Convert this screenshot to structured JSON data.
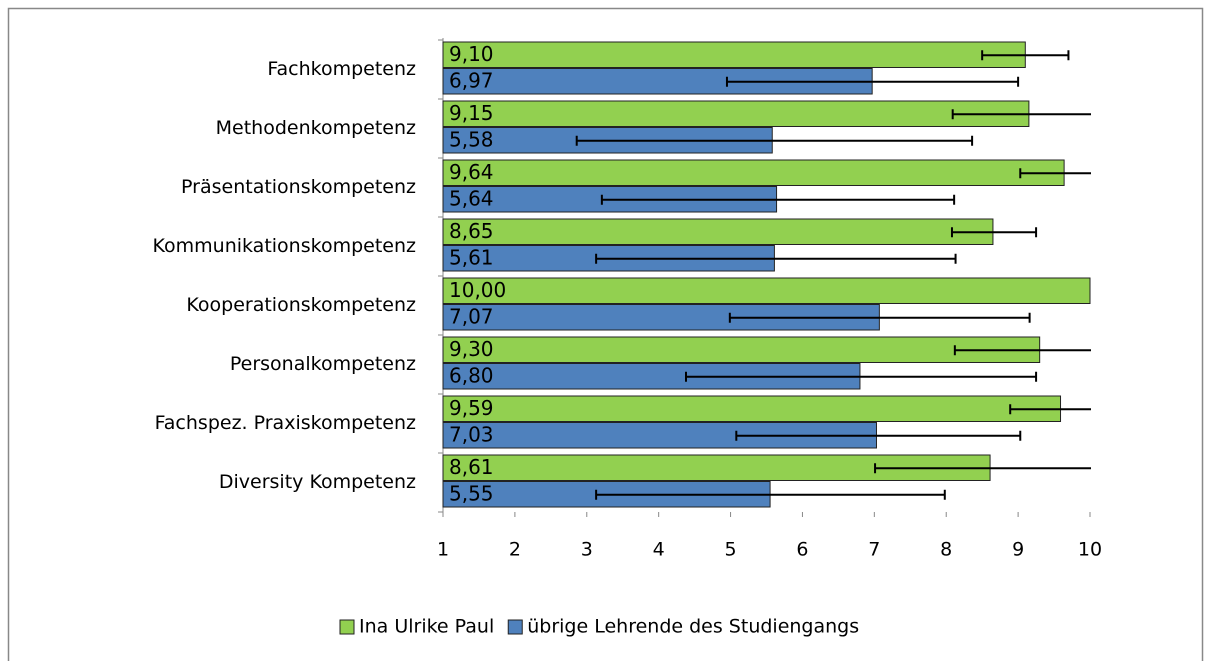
{
  "chart_data": {
    "type": "bar",
    "orientation": "horizontal",
    "categories": [
      "Fachkompetenz",
      "Methodenkompetenz",
      "Präsentationskompetenz",
      "Kommunikationskompetenz",
      "Kooperationskompetenz",
      "Personalkompetenz",
      "Fachspez. Praxiskompetenz",
      "Diversity Kompetenz"
    ],
    "series": [
      {
        "name": "Ina Ulrike Paul",
        "color": "#92d050",
        "values": [
          9.1,
          9.15,
          9.64,
          8.65,
          10.0,
          9.3,
          9.59,
          8.61
        ],
        "value_labels": [
          "9,10",
          "9,15",
          "9,64",
          "8,65",
          "10,00",
          "9,30",
          "9,59",
          "8,61"
        ],
        "error_minus": [
          0.6,
          1.06,
          0.61,
          0.57,
          0,
          1.18,
          0.7,
          1.6
        ],
        "error_plus": [
          0.6,
          1.06,
          0.61,
          0.6,
          0,
          1.18,
          0.7,
          1.6
        ]
      },
      {
        "name": "übrige Lehrende des Studiengangs",
        "color": "#4f81bd",
        "values": [
          6.97,
          5.58,
          5.64,
          5.61,
          7.07,
          6.8,
          7.03,
          5.55
        ],
        "value_labels": [
          "6,97",
          "5,58",
          "5,64",
          "5,61",
          "7,07",
          "6,80",
          "7,03",
          "5,55"
        ],
        "error_minus": [
          2.02,
          2.72,
          2.43,
          2.48,
          2.08,
          2.42,
          1.95,
          2.42
        ],
        "error_plus": [
          2.03,
          2.78,
          2.47,
          2.52,
          2.09,
          2.45,
          2.0,
          2.43
        ]
      }
    ],
    "xlim": [
      1,
      10
    ],
    "xticks": [
      1,
      2,
      3,
      4,
      5,
      6,
      7,
      8,
      9,
      10
    ],
    "legend": "bottom"
  }
}
